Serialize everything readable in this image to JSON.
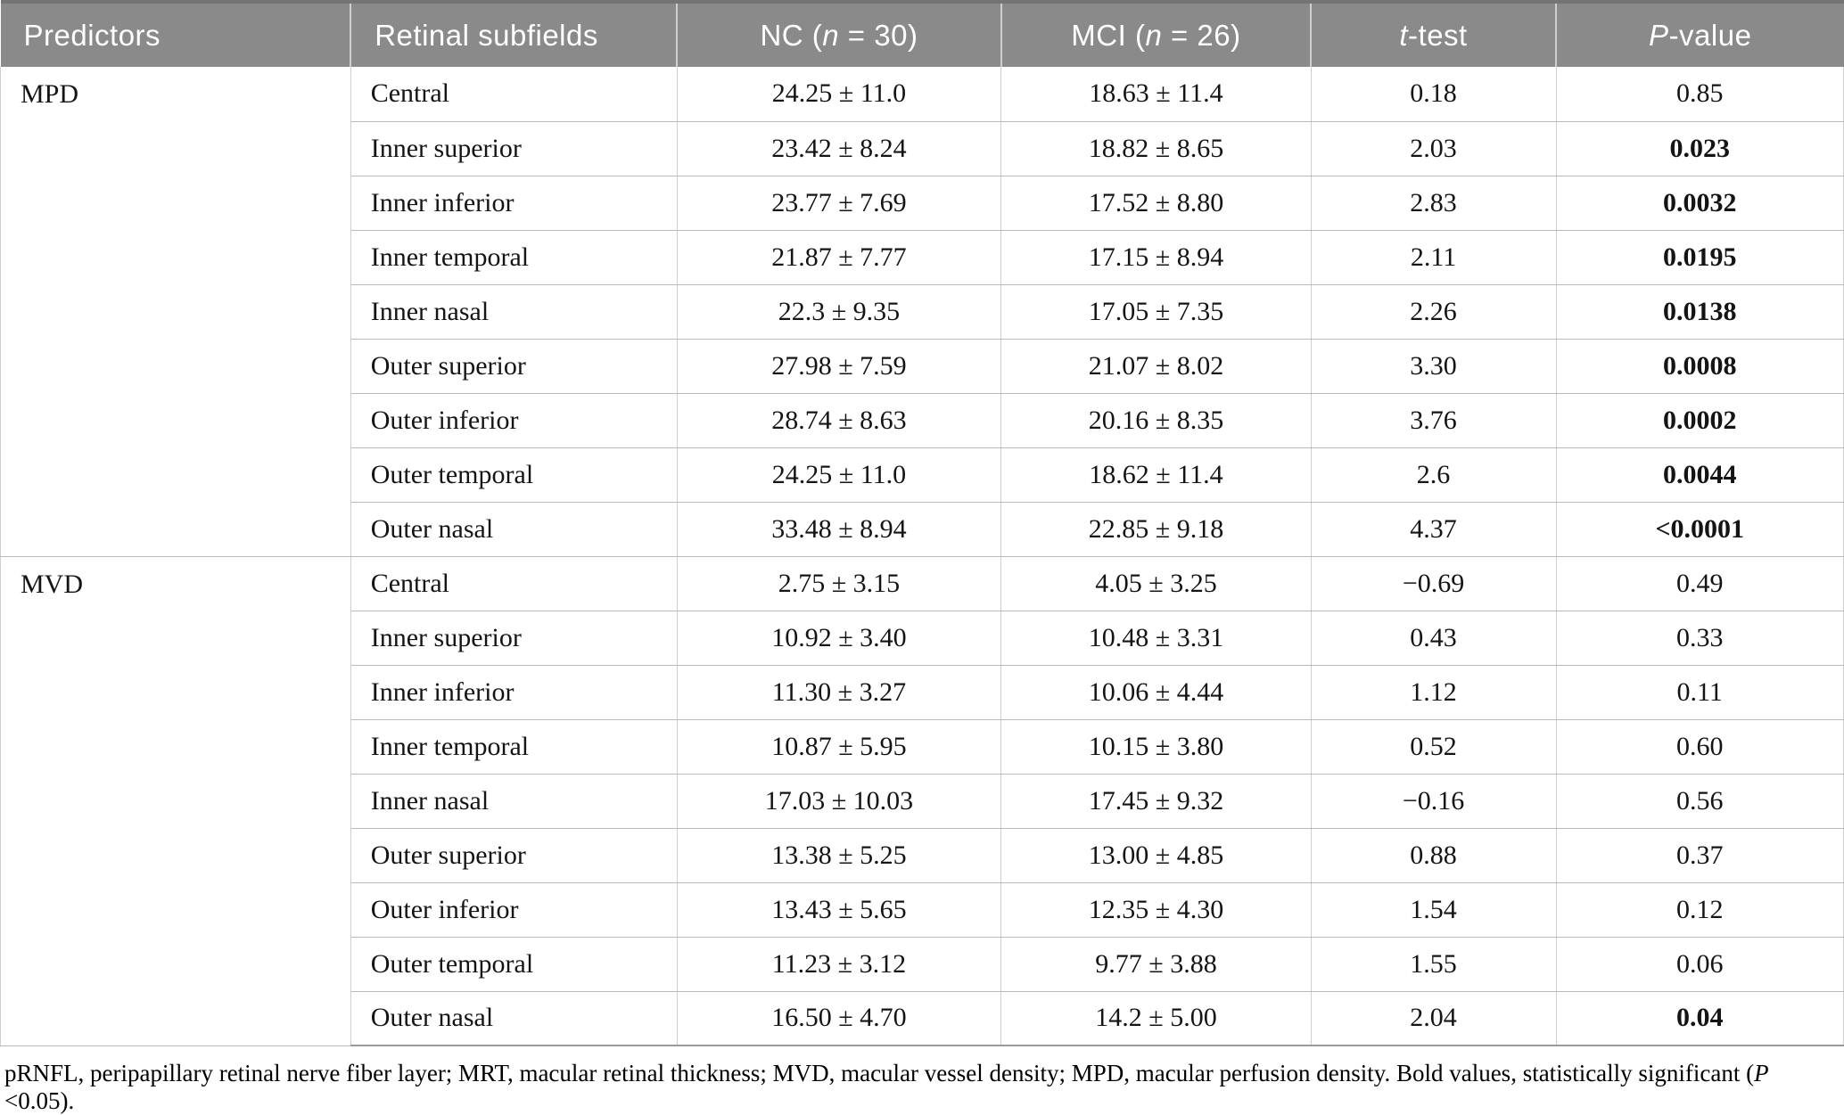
{
  "colors": {
    "header_bg": "#8a8a8a",
    "header_text": "#ffffff",
    "row_border": "#b9b9b9",
    "column_border": "#cfcfcf",
    "top_rule": "#747474",
    "bottom_rule": "#9a9a9a",
    "body_text": "#141414"
  },
  "table": {
    "headers": [
      {
        "prefix": "Predictors"
      },
      {
        "prefix": "Retinal subfields"
      },
      {
        "prefix": "NC (",
        "italic": "n",
        "suffix": " = 30)"
      },
      {
        "prefix": "MCI (",
        "italic": "n",
        "suffix": " = 26)"
      },
      {
        "italic": "t",
        "suffix": "-test"
      },
      {
        "italic": "P",
        "suffix": "-value"
      }
    ],
    "groups": [
      {
        "predictor": "MPD",
        "rows": [
          {
            "subfield": "Central",
            "nc": "24.25 ± 11.0",
            "mci": "18.63 ± 11.4",
            "t": "0.18",
            "p": "0.85",
            "p_bold": false
          },
          {
            "subfield": "Inner superior",
            "nc": "23.42 ± 8.24",
            "mci": "18.82 ± 8.65",
            "t": "2.03",
            "p": "0.023",
            "p_bold": true
          },
          {
            "subfield": "Inner inferior",
            "nc": "23.77 ± 7.69",
            "mci": "17.52 ± 8.80",
            "t": "2.83",
            "p": "0.0032",
            "p_bold": true
          },
          {
            "subfield": "Inner temporal",
            "nc": "21.87 ± 7.77",
            "mci": "17.15 ± 8.94",
            "t": "2.11",
            "p": "0.0195",
            "p_bold": true
          },
          {
            "subfield": "Inner nasal",
            "nc": "22.3 ± 9.35",
            "mci": "17.05 ± 7.35",
            "t": "2.26",
            "p": "0.0138",
            "p_bold": true
          },
          {
            "subfield": "Outer superior",
            "nc": "27.98 ± 7.59",
            "mci": "21.07 ± 8.02",
            "t": "3.30",
            "p": "0.0008",
            "p_bold": true
          },
          {
            "subfield": "Outer inferior",
            "nc": "28.74 ± 8.63",
            "mci": "20.16 ± 8.35",
            "t": "3.76",
            "p": "0.0002",
            "p_bold": true
          },
          {
            "subfield": "Outer temporal",
            "nc": "24.25 ± 11.0",
            "mci": "18.62 ± 11.4",
            "t": "2.6",
            "p": "0.0044",
            "p_bold": true
          },
          {
            "subfield": "Outer nasal",
            "nc": "33.48 ± 8.94",
            "mci": "22.85 ± 9.18",
            "t": "4.37",
            "p": "<0.0001",
            "p_bold": true
          }
        ]
      },
      {
        "predictor": "MVD",
        "rows": [
          {
            "subfield": "Central",
            "nc": "2.75 ± 3.15",
            "mci": "4.05 ± 3.25",
            "t": "−0.69",
            "p": "0.49",
            "p_bold": false
          },
          {
            "subfield": "Inner superior",
            "nc": "10.92 ± 3.40",
            "mci": "10.48 ± 3.31",
            "t": "0.43",
            "p": "0.33",
            "p_bold": false
          },
          {
            "subfield": "Inner inferior",
            "nc": "11.30 ± 3.27",
            "mci": "10.06 ± 4.44",
            "t": "1.12",
            "p": "0.11",
            "p_bold": false
          },
          {
            "subfield": "Inner temporal",
            "nc": "10.87 ± 5.95",
            "mci": "10.15 ± 3.80",
            "t": "0.52",
            "p": "0.60",
            "p_bold": false
          },
          {
            "subfield": "Inner nasal",
            "nc": "17.03 ± 10.03",
            "mci": "17.45 ± 9.32",
            "t": "−0.16",
            "p": "0.56",
            "p_bold": false
          },
          {
            "subfield": "Outer superior",
            "nc": "13.38 ± 5.25",
            "mci": "13.00 ± 4.85",
            "t": "0.88",
            "p": "0.37",
            "p_bold": false
          },
          {
            "subfield": "Outer inferior",
            "nc": "13.43 ± 5.65",
            "mci": "12.35 ± 4.30",
            "t": "1.54",
            "p": "0.12",
            "p_bold": false
          },
          {
            "subfield": "Outer temporal",
            "nc": "11.23 ± 3.12",
            "mci": "9.77 ± 3.88",
            "t": "1.55",
            "p": "0.06",
            "p_bold": false
          },
          {
            "subfield": "Outer nasal",
            "nc": "16.50 ± 4.70",
            "mci": "14.2 ± 5.00",
            "t": "2.04",
            "p": "0.04",
            "p_bold": true
          }
        ]
      }
    ]
  },
  "footnote": {
    "text": "pRNFL, peripapillary retinal nerve fiber layer; MRT, macular retinal thickness; MVD, macular vessel density; MPD, macular perfusion density. Bold values, statistically significant (",
    "italic": "P",
    "suffix": " <0.05)."
  }
}
